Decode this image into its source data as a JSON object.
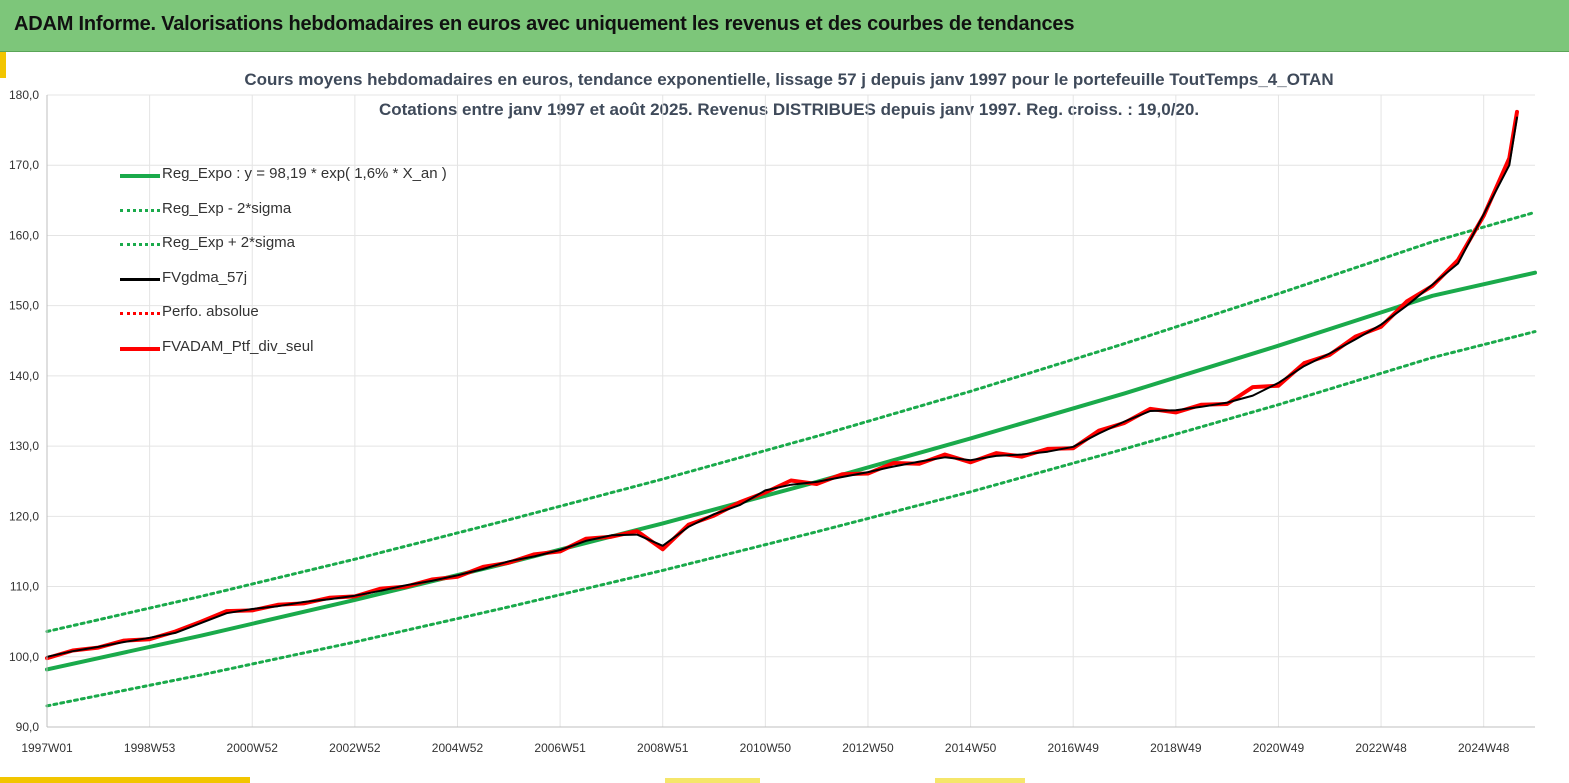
{
  "header": {
    "title": "ADAM Informe. Valorisations hebdomadaires en euros avec uniquement les revenus et des courbes de tendances"
  },
  "colors": {
    "header_bg": "#7dc67a",
    "accent": "#f2c500",
    "reg": "#1aaa4b",
    "smooth": "#000000",
    "portfolio": "#ff0000",
    "grid": "#e4e4e4"
  },
  "chart_data": {
    "type": "line",
    "title": "Cours moyens hebdomadaires  en euros, tendance exponentielle, lissage 57 j depuis janv 1997 pour le portefeuille ToutTemps_4_OTAN",
    "subtitle": "Cotations  entre janv 1997 et août  2025. Revenus DISTRIBUES depuis janv 1997. Reg. croiss. : 19,0/20.",
    "xlabel": "",
    "ylabel": "",
    "ylim": [
      90,
      180
    ],
    "y_ticks": [
      "180,0",
      "170,0",
      "160,0",
      "150,0",
      "140,0",
      "130,0",
      "120,0",
      "110,0",
      "100,0",
      "90,0"
    ],
    "x_ticks": [
      "1997W01",
      "1998W53",
      "2000W52",
      "2002W52",
      "2004W52",
      "2006W51",
      "2008W51",
      "2010W50",
      "2012W50",
      "2014W50",
      "2016W49",
      "2018W49",
      "2020W49",
      "2022W48",
      "2024W48"
    ],
    "x_tick_values": [
      1997.0,
      1999.0,
      2001.0,
      2003.0,
      2005.0,
      2007.0,
      2009.0,
      2011.0,
      2013.0,
      2015.0,
      2017.0,
      2019.0,
      2021.0,
      2023.0,
      2025.0
    ],
    "xlim": [
      1997.0,
      2026.0
    ],
    "grid": true,
    "legend_position": "top-left",
    "series": [
      {
        "name": "Reg_Expo : y = 98,19 * exp( 1,6% *  X_an )",
        "style": "solid-thick",
        "color": "#1aaa4b",
        "x": [
          1997.0,
          2000.0,
          2003.0,
          2006.0,
          2009.0,
          2012.0,
          2015.0,
          2018.0,
          2021.0,
          2024.0,
          2026.0
        ],
        "y": [
          98.2,
          103.0,
          108.1,
          113.4,
          119.0,
          124.9,
          131.1,
          137.5,
          144.3,
          151.4,
          154.7
        ]
      },
      {
        "name": "Reg_Exp - 2*sigma",
        "style": "dotted",
        "color": "#1aaa4b",
        "x": [
          1997.0,
          2000.0,
          2003.0,
          2006.0,
          2009.0,
          2012.0,
          2015.0,
          2018.0,
          2021.0,
          2024.0,
          2026.0
        ],
        "y": [
          93.0,
          97.4,
          102.1,
          107.1,
          112.3,
          117.8,
          123.5,
          129.6,
          135.9,
          142.6,
          146.3
        ]
      },
      {
        "name": "Reg_Exp + 2*sigma",
        "style": "dotted",
        "color": "#1aaa4b",
        "x": [
          1997.0,
          2000.0,
          2003.0,
          2006.0,
          2009.0,
          2012.0,
          2015.0,
          2018.0,
          2021.0,
          2024.0,
          2026.0
        ],
        "y": [
          103.6,
          108.6,
          113.9,
          119.5,
          125.3,
          131.4,
          137.8,
          144.6,
          151.7,
          159.1,
          163.3
        ]
      },
      {
        "name": "FVgdma_57j",
        "style": "solid",
        "color": "#000000",
        "x": [
          1997.0,
          1997.5,
          1998.0,
          1998.5,
          1999.0,
          1999.5,
          2000.0,
          2000.5,
          2001.0,
          2001.5,
          2002.0,
          2002.5,
          2003.0,
          2003.5,
          2004.0,
          2004.5,
          2005.0,
          2005.5,
          2006.0,
          2006.5,
          2007.0,
          2007.5,
          2008.0,
          2008.5,
          2009.0,
          2009.5,
          2010.0,
          2010.5,
          2011.0,
          2011.5,
          2012.0,
          2012.5,
          2013.0,
          2013.5,
          2014.0,
          2014.5,
          2015.0,
          2015.5,
          2016.0,
          2016.5,
          2017.0,
          2017.5,
          2018.0,
          2018.5,
          2019.0,
          2019.5,
          2020.0,
          2020.5,
          2021.0,
          2021.5,
          2022.0,
          2022.5,
          2023.0,
          2023.5,
          2024.0,
          2024.5,
          2025.0,
          2025.5,
          2025.65
        ],
        "y": [
          100.0,
          100.8,
          101.4,
          102.1,
          102.7,
          103.4,
          104.8,
          106.2,
          106.8,
          107.2,
          107.8,
          108.2,
          108.7,
          109.4,
          110.2,
          110.8,
          111.6,
          112.5,
          113.6,
          114.3,
          115.2,
          116.5,
          117.3,
          117.4,
          115.8,
          118.5,
          120.3,
          121.6,
          123.7,
          124.5,
          124.9,
          125.6,
          126.3,
          127.1,
          127.8,
          128.4,
          128.0,
          128.6,
          128.8,
          129.2,
          129.9,
          131.8,
          133.5,
          135.0,
          135.1,
          135.6,
          136.2,
          137.2,
          139.0,
          141.4,
          143.2,
          145.2,
          147.3,
          150.0,
          153.0,
          156.0,
          163.0,
          170.0,
          176.8
        ]
      },
      {
        "name": "Perfo. absolue",
        "style": "dotted",
        "color": "#ff0000",
        "x": [],
        "y": []
      },
      {
        "name": "FVADAM_Ptf_div_seul",
        "style": "solid-thick",
        "color": "#ff0000",
        "x": [
          1997.0,
          1997.5,
          1998.0,
          1998.5,
          1999.0,
          1999.5,
          2000.0,
          2000.5,
          2001.0,
          2001.5,
          2002.0,
          2002.5,
          2003.0,
          2003.5,
          2004.0,
          2004.5,
          2005.0,
          2005.5,
          2006.0,
          2006.5,
          2007.0,
          2007.5,
          2008.0,
          2008.5,
          2009.0,
          2009.5,
          2010.0,
          2010.5,
          2011.0,
          2011.5,
          2012.0,
          2012.5,
          2013.0,
          2013.5,
          2014.0,
          2014.5,
          2015.0,
          2015.5,
          2016.0,
          2016.5,
          2017.0,
          2017.5,
          2018.0,
          2018.5,
          2019.0,
          2019.5,
          2020.0,
          2020.5,
          2021.0,
          2021.5,
          2022.0,
          2022.5,
          2023.0,
          2023.5,
          2024.0,
          2024.5,
          2025.0,
          2025.5,
          2025.65
        ],
        "y": [
          99.8,
          100.9,
          101.3,
          102.3,
          102.5,
          103.6,
          105.0,
          106.5,
          106.6,
          107.4,
          107.6,
          108.4,
          108.6,
          109.7,
          110.0,
          111.0,
          111.4,
          112.8,
          113.4,
          114.6,
          115.0,
          116.8,
          117.1,
          117.9,
          115.3,
          118.8,
          120.1,
          122.0,
          123.4,
          125.1,
          124.6,
          126.0,
          126.1,
          127.6,
          127.5,
          128.8,
          127.7,
          129.0,
          128.5,
          129.6,
          129.7,
          132.2,
          133.3,
          135.3,
          134.8,
          135.9,
          136.0,
          138.4,
          138.6,
          141.8,
          143.0,
          145.6,
          147.0,
          150.6,
          152.8,
          156.5,
          162.8,
          171.0,
          177.6
        ]
      }
    ]
  }
}
